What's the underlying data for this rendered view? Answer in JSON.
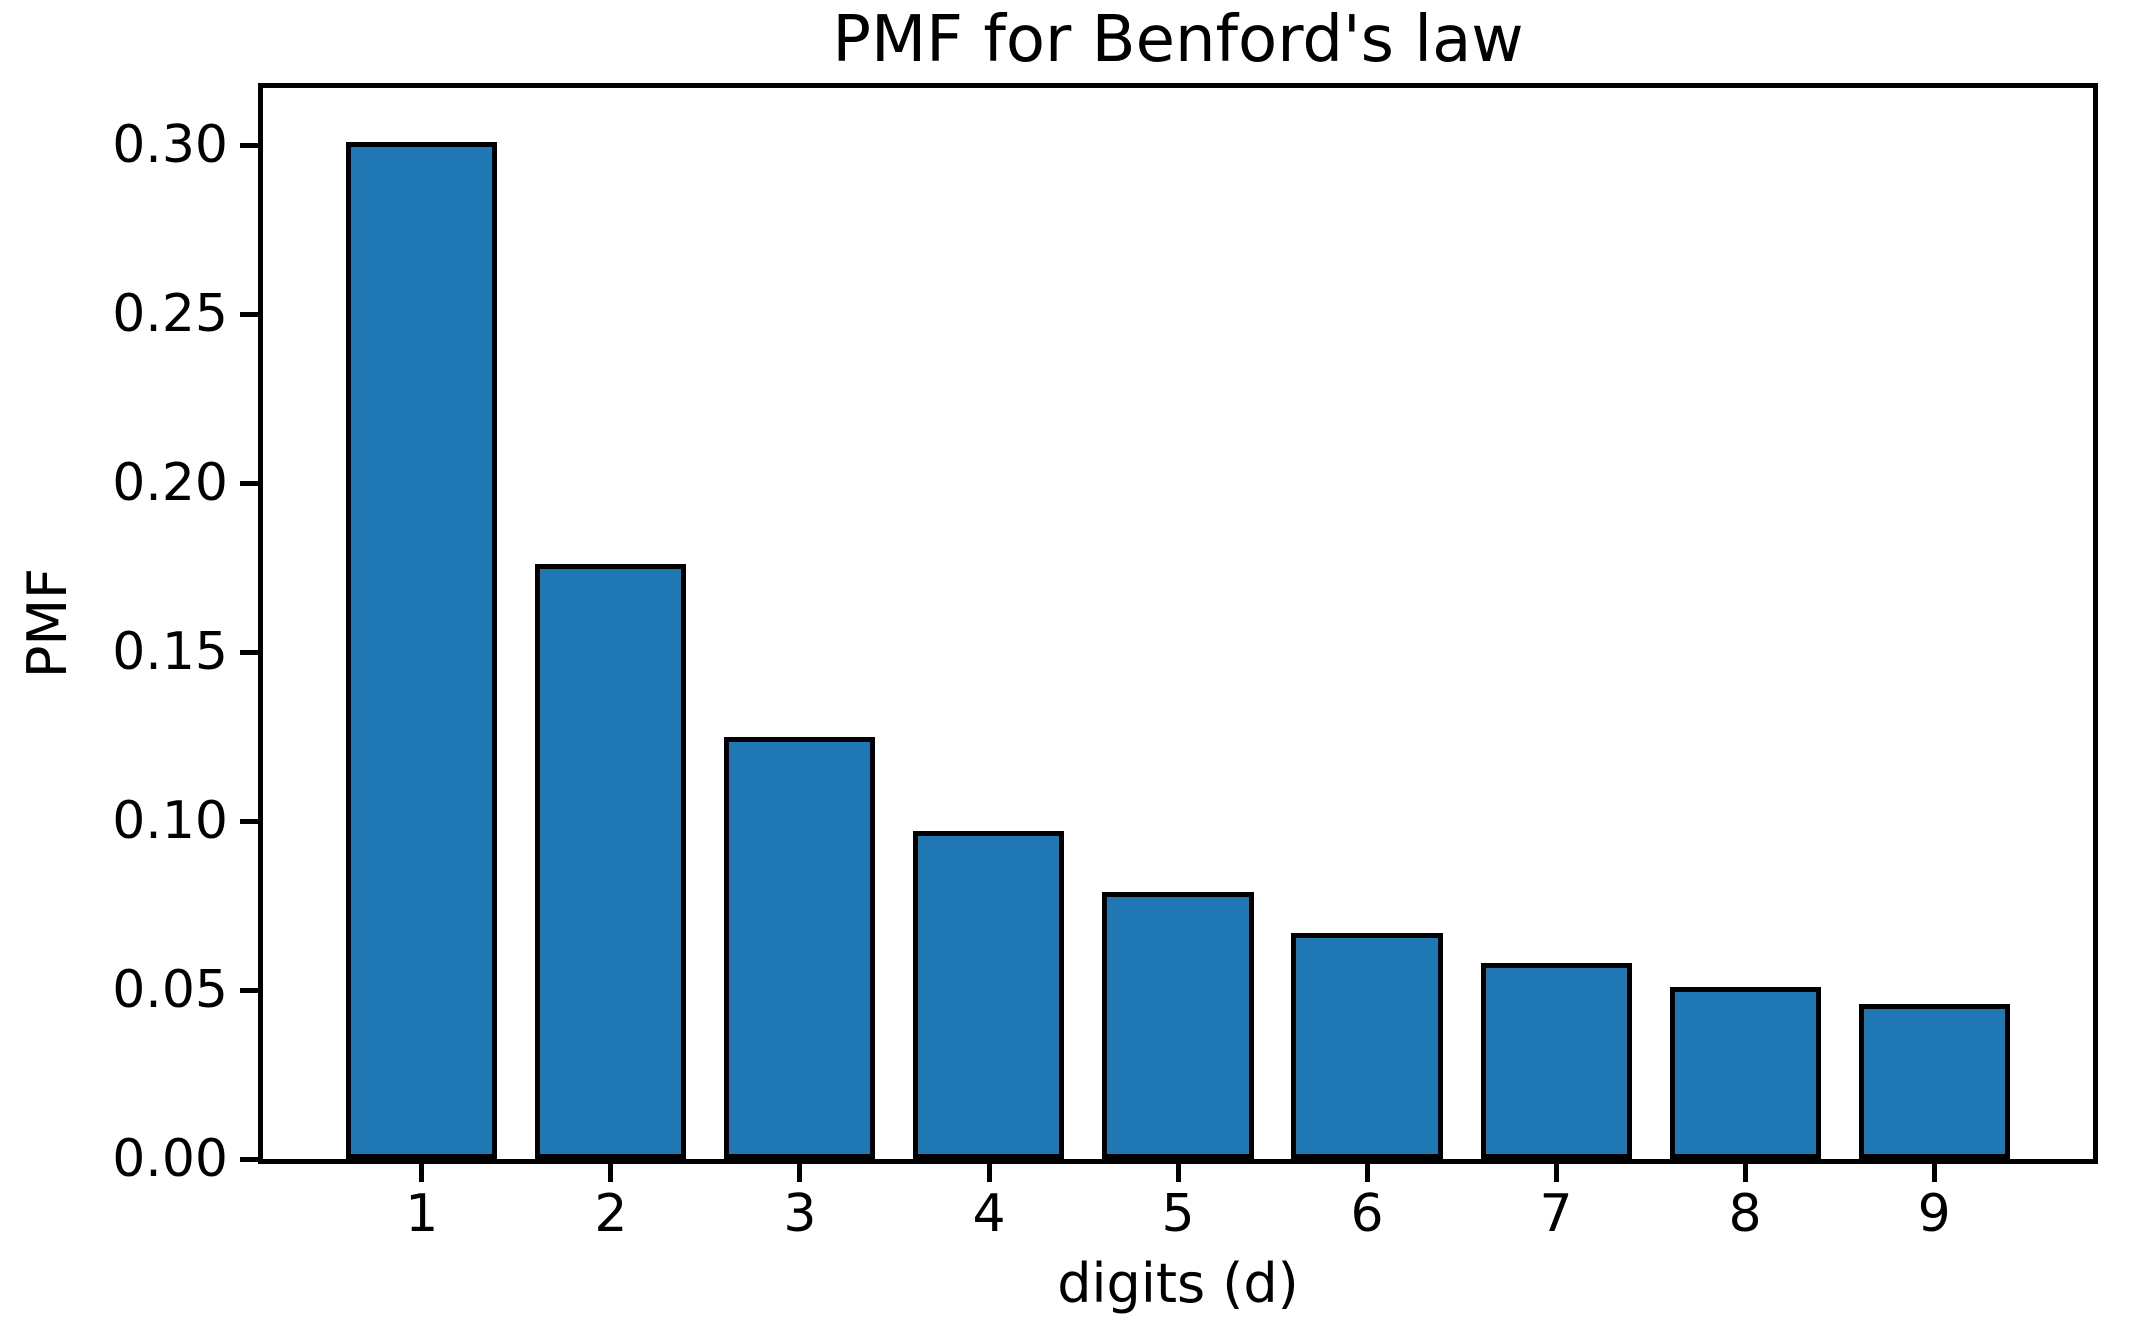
{
  "figure": {
    "background_color": "#ffffff",
    "text_color": "#000000"
  },
  "chart_data": {
    "type": "bar",
    "title": "PMF for Benford's law",
    "xlabel": "digits (d)",
    "ylabel": "PMF",
    "categories": [
      "1",
      "2",
      "3",
      "4",
      "5",
      "6",
      "7",
      "8",
      "9"
    ],
    "x_positions": [
      1,
      2,
      3,
      4,
      5,
      6,
      7,
      8,
      9
    ],
    "values": [
      0.301,
      0.176,
      0.125,
      0.097,
      0.079,
      0.067,
      0.058,
      0.051,
      0.046
    ],
    "bar_width": 0.8,
    "bar_color": "#1f77b4",
    "bar_edge_color": "#000000",
    "y_ticks": [
      "0.00",
      "0.05",
      "0.10",
      "0.15",
      "0.20",
      "0.25",
      "0.30"
    ],
    "y_tick_values": [
      0.0,
      0.05,
      0.1,
      0.15,
      0.2,
      0.25,
      0.3
    ],
    "xlim": [
      0.16,
      9.84
    ],
    "ylim": [
      0,
      0.3169
    ],
    "grid": false,
    "legend": null
  }
}
